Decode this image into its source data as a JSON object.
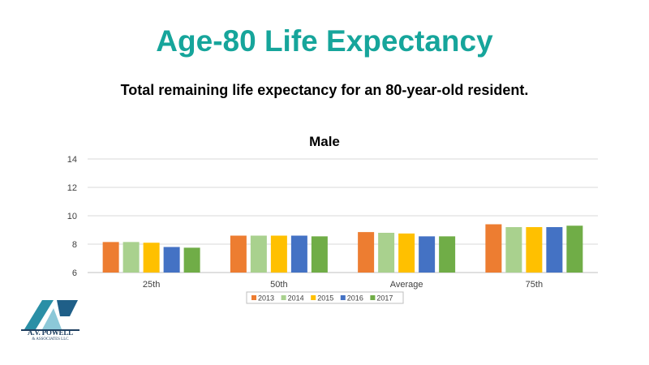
{
  "slide": {
    "title": "Age-80 Life Expectancy",
    "subtitle": "Total remaining life expectancy for an 80-year-old resident.",
    "title_color": "#16a59b"
  },
  "logo": {
    "mark_text": "AVP",
    "name": "A.V. POWELL",
    "tagline": "& ASSOCIATES LLC"
  },
  "chart_data": {
    "type": "bar",
    "title": "Male",
    "xlabel": "",
    "ylabel": "",
    "categories": [
      "25th",
      "50th",
      "Average",
      "75th"
    ],
    "ylim": [
      6,
      14
    ],
    "yticks": [
      6,
      8,
      10,
      12,
      14
    ],
    "grid": true,
    "legend_position": "bottom",
    "series": [
      {
        "name": "2013",
        "color": "#ed7d31",
        "values": [
          8.15,
          8.6,
          8.85,
          9.4
        ]
      },
      {
        "name": "2014",
        "color": "#a9d18e",
        "values": [
          8.15,
          8.6,
          8.8,
          9.2
        ]
      },
      {
        "name": "2015",
        "color": "#ffc000",
        "values": [
          8.1,
          8.6,
          8.75,
          9.2
        ]
      },
      {
        "name": "2016",
        "color": "#4472c4",
        "values": [
          7.8,
          8.6,
          8.55,
          9.2
        ]
      },
      {
        "name": "2017",
        "color": "#70ad47",
        "values": [
          7.75,
          8.55,
          8.55,
          9.3
        ]
      }
    ]
  }
}
